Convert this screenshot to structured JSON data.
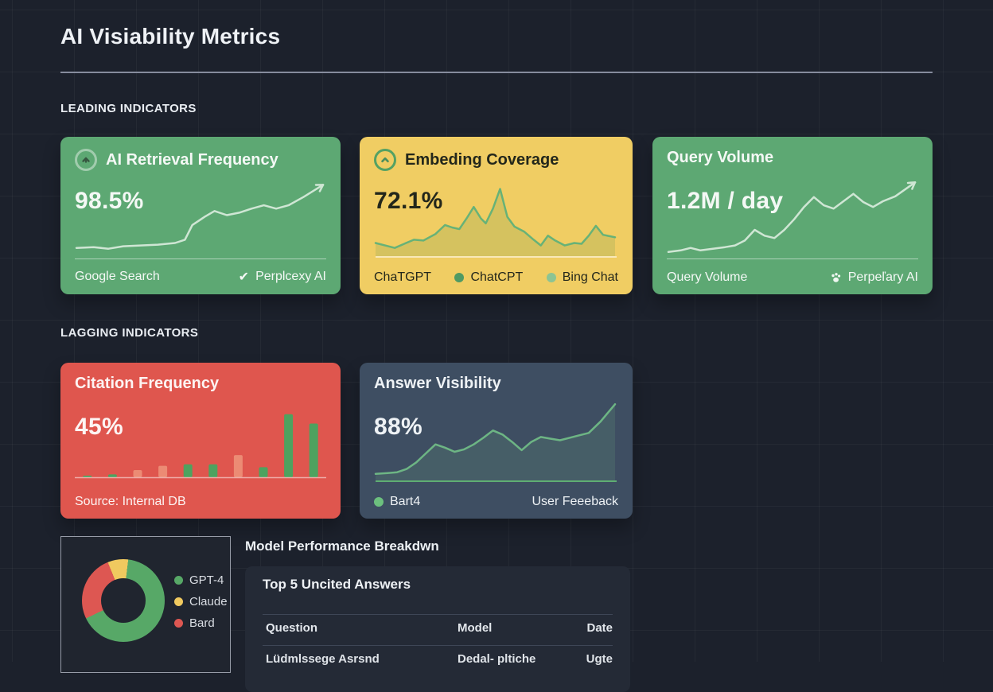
{
  "page": {
    "title": "AI Visiability Metrics"
  },
  "sections": {
    "leading": "LEADING INDICATORS",
    "lagging": "LAGGING INDICATORS"
  },
  "cards": {
    "retrieval": {
      "title": "AI Retrieval Frequency",
      "value": "98.5%",
      "footer_left": "Google Search",
      "check_icon": "✔",
      "footer_right": "Perplcexy AI",
      "bg": "#5da873",
      "line_color": "#cfe6d4",
      "arrow": true,
      "points": [
        [
          0,
          10
        ],
        [
          7,
          11
        ],
        [
          13,
          9
        ],
        [
          19,
          12
        ],
        [
          26,
          13
        ],
        [
          33,
          14
        ],
        [
          40,
          16
        ],
        [
          44,
          20
        ],
        [
          47,
          38
        ],
        [
          52,
          48
        ],
        [
          56,
          55
        ],
        [
          61,
          50
        ],
        [
          66,
          53
        ],
        [
          71,
          58
        ],
        [
          76,
          62
        ],
        [
          81,
          58
        ],
        [
          86,
          62
        ],
        [
          92,
          72
        ],
        [
          100,
          87
        ]
      ]
    },
    "embedding": {
      "title": "Embeding Coverage",
      "value": "72.1%",
      "footer_left": "ChaTGPT",
      "legend": [
        {
          "label": "ChatCPT",
          "dot": "#4f9a63"
        },
        {
          "label": "Bing Chat",
          "dot": "#8cc493"
        }
      ],
      "bg": "#f0cd63",
      "line_color": "#67b277",
      "fill_color": "rgba(104,150,82,0.20)",
      "baseline_color": "rgba(255,255,255,0.55)",
      "points": [
        [
          0,
          16
        ],
        [
          4,
          13
        ],
        [
          8,
          10
        ],
        [
          12,
          15
        ],
        [
          16,
          20
        ],
        [
          20,
          19
        ],
        [
          25,
          27
        ],
        [
          29,
          38
        ],
        [
          32,
          35
        ],
        [
          35,
          33
        ],
        [
          38,
          46
        ],
        [
          41,
          60
        ],
        [
          44,
          46
        ],
        [
          46,
          40
        ],
        [
          49,
          58
        ],
        [
          52,
          82
        ],
        [
          55,
          48
        ],
        [
          58,
          36
        ],
        [
          62,
          30
        ],
        [
          66,
          20
        ],
        [
          69,
          13
        ],
        [
          72,
          25
        ],
        [
          75,
          19
        ],
        [
          79,
          13
        ],
        [
          83,
          16
        ],
        [
          86,
          15
        ],
        [
          89,
          25
        ],
        [
          92,
          37
        ],
        [
          95,
          26
        ],
        [
          100,
          23
        ]
      ]
    },
    "query": {
      "title": "Query Volume",
      "value": "1.2M / day",
      "footer_left": "Query Volume",
      "footer_right": "Perpeľary AI",
      "bg": "#5da873",
      "line_color": "#cfe6d4",
      "arrow": true,
      "points": [
        [
          0,
          5
        ],
        [
          5,
          7
        ],
        [
          9,
          10
        ],
        [
          13,
          7
        ],
        [
          18,
          9
        ],
        [
          23,
          11
        ],
        [
          27,
          13
        ],
        [
          31,
          19
        ],
        [
          35,
          32
        ],
        [
          39,
          25
        ],
        [
          43,
          22
        ],
        [
          47,
          32
        ],
        [
          51,
          45
        ],
        [
          55,
          60
        ],
        [
          59,
          72
        ],
        [
          63,
          62
        ],
        [
          67,
          58
        ],
        [
          71,
          67
        ],
        [
          75,
          76
        ],
        [
          79,
          66
        ],
        [
          83,
          60
        ],
        [
          87,
          67
        ],
        [
          92,
          73
        ],
        [
          100,
          90
        ]
      ]
    },
    "citation": {
      "title": "Citation Frequency",
      "value": "45%",
      "footer_left": "Source: Internal DB",
      "bg": "#df564e",
      "baseline_color": "rgba(255,255,255,0.5)",
      "bar_values": [
        2,
        4,
        10,
        16,
        18,
        18,
        31,
        14,
        88,
        75
      ],
      "bar_colors": [
        "#4ea25f",
        "#4ea25f",
        "#ec8b74",
        "#ec8b74",
        "#4ea25f",
        "#4ea25f",
        "#ec8b74",
        "#4ea25f",
        "#4ea25f",
        "#4ea25f"
      ]
    },
    "answer": {
      "title": "Answer Visibility",
      "value": "88%",
      "legend_label": "Bart4",
      "legend_dot": "#6cc07e",
      "footer_right": "User Feeeback",
      "bg": "#3e4e62",
      "line_color": "#6db584",
      "fill_color": "rgba(109,181,132,0.16)",
      "baseline_color": "#5fae73",
      "points": [
        [
          0,
          8
        ],
        [
          5,
          9
        ],
        [
          9,
          10
        ],
        [
          13,
          14
        ],
        [
          17,
          22
        ],
        [
          21,
          33
        ],
        [
          25,
          44
        ],
        [
          29,
          40
        ],
        [
          33,
          35
        ],
        [
          37,
          38
        ],
        [
          41,
          44
        ],
        [
          45,
          52
        ],
        [
          49,
          61
        ],
        [
          53,
          56
        ],
        [
          57,
          47
        ],
        [
          61,
          37
        ],
        [
          65,
          47
        ],
        [
          69,
          53
        ],
        [
          73,
          51
        ],
        [
          77,
          49
        ],
        [
          81,
          52
        ],
        [
          85,
          55
        ],
        [
          89,
          58
        ],
        [
          94,
          72
        ],
        [
          100,
          93
        ]
      ]
    }
  },
  "donut": {
    "start_deg": -22,
    "segments": [
      {
        "label": "Claude",
        "pct": 8,
        "color": "#f0c95f"
      },
      {
        "label": "GPT-4",
        "pct": 66,
        "color": "#57a867"
      },
      {
        "label": "Bard",
        "pct": 26,
        "color": "#dd5752"
      }
    ],
    "legend": [
      {
        "label": "GPT-4",
        "color": "#57a867"
      },
      {
        "label": "Claude",
        "color": "#f0c95f"
      },
      {
        "label": "Bard",
        "color": "#dd5752"
      }
    ]
  },
  "breakdown": {
    "title": "Model Performance Breakdwn",
    "panel_title": "Top 5 Uncited Answers",
    "columns": [
      "Question",
      "Model",
      "Date"
    ],
    "rows": [
      {
        "question": "Lüdmlssege Asrsnd",
        "model": "Dedal- pltiche",
        "date": "Ugte"
      }
    ]
  }
}
